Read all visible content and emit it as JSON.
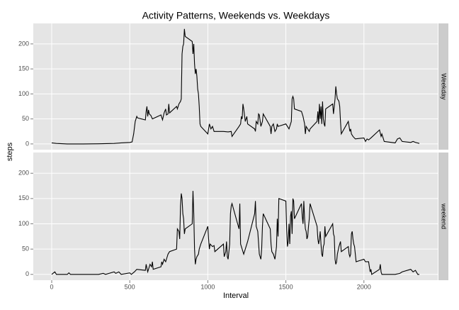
{
  "chart_data": {
    "type": "line",
    "title": "Activity Patterns, Weekends vs. Weekdays",
    "x_label": "Interval",
    "y_label": "steps",
    "xlim": [
      -118,
      2473
    ],
    "xticks": [
      0,
      500,
      1000,
      1500,
      2000
    ],
    "ylim": [
      -11.5,
      241
    ],
    "yticks": [
      0,
      50,
      100,
      150,
      200
    ],
    "grid": true,
    "series": [
      {
        "name": "Weekday",
        "color": "#000000",
        "x": [
          0,
          30,
          100,
          200,
          300,
          400,
          445,
          500,
          515,
          525,
          535,
          545,
          550,
          600,
          605,
          610,
          615,
          620,
          625,
          635,
          645,
          700,
          710,
          720,
          730,
          735,
          745,
          750,
          755,
          800,
          805,
          815,
          825,
          830,
          835,
          840,
          845,
          850,
          855,
          900,
          905,
          910,
          915,
          920,
          925,
          930,
          935,
          940,
          945,
          950,
          955,
          1000,
          1010,
          1020,
          1030,
          1040,
          1100,
          1130,
          1150,
          1155,
          1200,
          1210,
          1215,
          1220,
          1225,
          1230,
          1240,
          1250,
          1255,
          1300,
          1305,
          1310,
          1320,
          1325,
          1330,
          1340,
          1345,
          1350,
          1355,
          1400,
          1405,
          1410,
          1420,
          1430,
          1440,
          1445,
          1450,
          1500,
          1510,
          1520,
          1530,
          1535,
          1540,
          1545,
          1550,
          1555,
          1600,
          1610,
          1620,
          1625,
          1630,
          1640,
          1650,
          1655,
          1700,
          1705,
          1710,
          1715,
          1720,
          1725,
          1730,
          1735,
          1740,
          1745,
          1750,
          1755,
          1800,
          1805,
          1810,
          1815,
          1820,
          1825,
          1830,
          1835,
          1840,
          1845,
          1850,
          1855,
          1900,
          1905,
          1910,
          1915,
          1920,
          1930,
          1945,
          2000,
          2010,
          2020,
          2030,
          2045,
          2100,
          2110,
          2115,
          2130,
          2200,
          2215,
          2230,
          2245,
          2300,
          2315,
          2330,
          2355
        ],
        "values": [
          2,
          1,
          0,
          0,
          0.3,
          1,
          2,
          3,
          4,
          20,
          45,
          55,
          52,
          48,
          65,
          75,
          55,
          68,
          60,
          57,
          50,
          58,
          48,
          62,
          70,
          58,
          60,
          80,
          62,
          75,
          70,
          80,
          85,
          90,
          180,
          195,
          200,
          230,
          215,
          205,
          180,
          200,
          160,
          140,
          150,
          135,
          110,
          100,
          75,
          40,
          35,
          20,
          40,
          30,
          35,
          25,
          25,
          24,
          25,
          15,
          35,
          40,
          55,
          50,
          80,
          70,
          45,
          55,
          40,
          30,
          25,
          45,
          40,
          60,
          58,
          35,
          40,
          45,
          60,
          35,
          20,
          35,
          40,
          25,
          30,
          40,
          35,
          40,
          35,
          30,
          40,
          45,
          90,
          95,
          90,
          70,
          65,
          55,
          40,
          20,
          35,
          30,
          25,
          30,
          45,
          65,
          40,
          80,
          50,
          75,
          40,
          85,
          50,
          40,
          35,
          70,
          80,
          60,
          75,
          90,
          115,
          100,
          90,
          88,
          85,
          75,
          45,
          20,
          45,
          35,
          25,
          30,
          20,
          15,
          10,
          12,
          5,
          10,
          8,
          12,
          28,
          15,
          20,
          5,
          2,
          10,
          12,
          5,
          3,
          5,
          3,
          1
        ]
      },
      {
        "name": "weekend",
        "color": "#000000",
        "x": [
          0,
          20,
          30,
          100,
          110,
          120,
          200,
          300,
          330,
          345,
          400,
          410,
          430,
          445,
          500,
          510,
          530,
          545,
          600,
          605,
          610,
          615,
          630,
          640,
          645,
          650,
          700,
          705,
          710,
          720,
          730,
          740,
          745,
          755,
          800,
          805,
          815,
          820,
          825,
          830,
          835,
          840,
          845,
          850,
          855,
          900,
          905,
          910,
          915,
          920,
          925,
          930,
          940,
          945,
          950,
          955,
          1000,
          1005,
          1010,
          1015,
          1030,
          1040,
          1045,
          1100,
          1105,
          1110,
          1115,
          1120,
          1125,
          1130,
          1140,
          1145,
          1150,
          1155,
          1200,
          1205,
          1210,
          1215,
          1230,
          1245,
          1250,
          1255,
          1300,
          1305,
          1310,
          1320,
          1330,
          1340,
          1345,
          1350,
          1355,
          1400,
          1405,
          1410,
          1420,
          1430,
          1440,
          1445,
          1450,
          1455,
          1500,
          1505,
          1510,
          1515,
          1520,
          1525,
          1530,
          1535,
          1540,
          1545,
          1550,
          1555,
          1600,
          1605,
          1610,
          1615,
          1620,
          1625,
          1630,
          1635,
          1640,
          1645,
          1650,
          1655,
          1700,
          1705,
          1710,
          1715,
          1720,
          1725,
          1730,
          1735,
          1740,
          1745,
          1750,
          1755,
          1800,
          1805,
          1810,
          1815,
          1820,
          1825,
          1830,
          1840,
          1845,
          1850,
          1855,
          1900,
          1905,
          1910,
          1915,
          1920,
          1925,
          1930,
          1935,
          1940,
          1945,
          1950,
          2000,
          2010,
          2030,
          2035,
          2040,
          2045,
          2050,
          2100,
          2105,
          2110,
          2115,
          2130,
          2200,
          2230,
          2245,
          2300,
          2315,
          2330,
          2345,
          2355
        ],
        "values": [
          0,
          5,
          0,
          0,
          3,
          0,
          0,
          0,
          2,
          0,
          5,
          2,
          5,
          0,
          3,
          0,
          5,
          10,
          8,
          20,
          12,
          5,
          20,
          15,
          25,
          10,
          15,
          25,
          20,
          30,
          25,
          35,
          40,
          45,
          50,
          90,
          85,
          70,
          135,
          160,
          150,
          120,
          110,
          80,
          90,
          100,
          165,
          120,
          50,
          20,
          30,
          35,
          40,
          50,
          55,
          60,
          95,
          70,
          50,
          60,
          55,
          57,
          45,
          60,
          35,
          40,
          45,
          65,
          35,
          30,
          60,
          120,
          135,
          140,
          90,
          140,
          60,
          55,
          40,
          55,
          60,
          65,
          120,
          145,
          95,
          85,
          40,
          30,
          50,
          95,
          120,
          90,
          60,
          45,
          40,
          30,
          55,
          110,
          75,
          150,
          145,
          90,
          55,
          65,
          100,
          60,
          115,
          125,
          80,
          150,
          145,
          110,
          140,
          115,
          100,
          145,
          110,
          90,
          85,
          70,
          75,
          95,
          110,
          140,
          95,
          70,
          60,
          70,
          85,
          60,
          40,
          35,
          55,
          60,
          95,
          75,
          100,
          80,
          75,
          30,
          20,
          25,
          40,
          55,
          60,
          65,
          45,
          55,
          40,
          35,
          40,
          80,
          85,
          70,
          60,
          55,
          40,
          25,
          30,
          25,
          25,
          15,
          5,
          10,
          0,
          10,
          20,
          5,
          0,
          0,
          0,
          2,
          5,
          10,
          5,
          8,
          0,
          0
        ]
      }
    ]
  }
}
